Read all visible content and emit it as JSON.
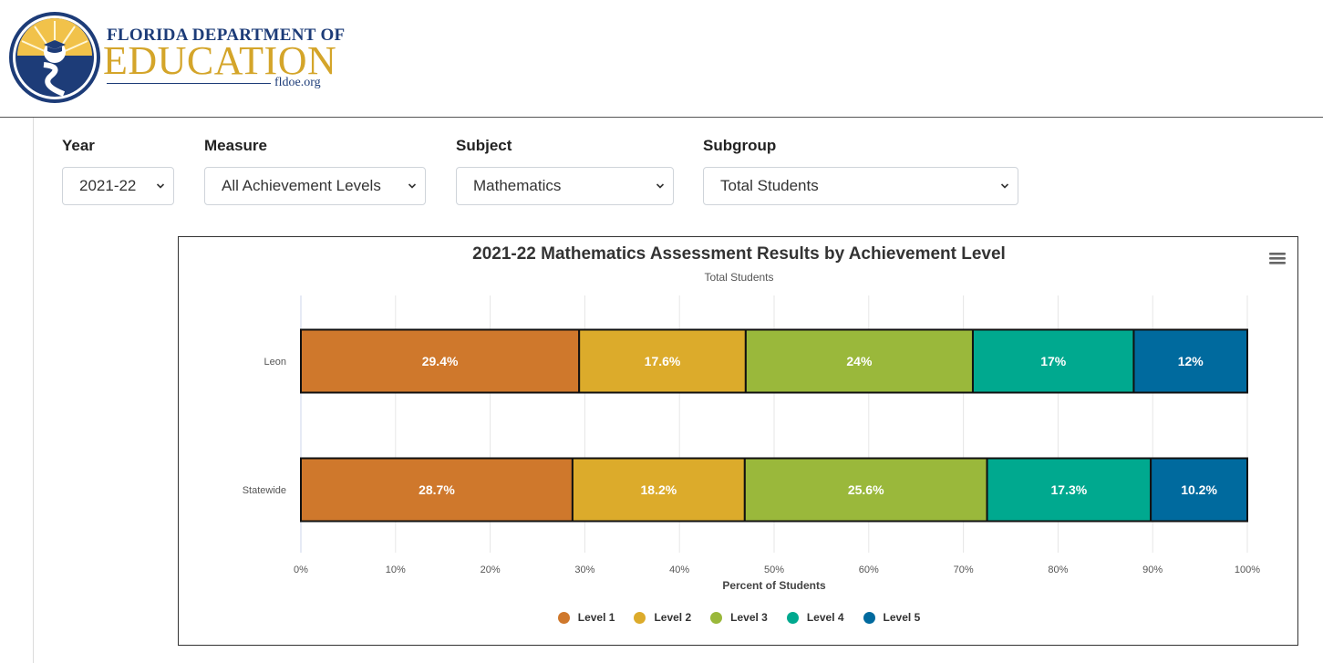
{
  "header": {
    "logo_line1": "FLORIDA DEPARTMENT OF",
    "logo_line2": "EDUCATION",
    "logo_line3": "fldoe.org"
  },
  "filters": [
    {
      "label": "Year",
      "value": "2021-22"
    },
    {
      "label": "Measure",
      "value": "All Achievement Levels"
    },
    {
      "label": "Subject",
      "value": "Mathematics"
    },
    {
      "label": "Subgroup",
      "value": "Total Students"
    }
  ],
  "colors": {
    "level1": "#cf782c",
    "level2": "#dcab2b",
    "level3": "#9ab83b",
    "level4": "#00a98f",
    "level5": "#006a9e"
  },
  "chart_data": {
    "type": "bar",
    "orientation": "horizontal",
    "stacked": true,
    "title": "2021-22 Mathematics Assessment Results by Achievement Level",
    "subtitle": "Total Students",
    "xlabel": "Percent of Students",
    "ylabel": "",
    "xlim": [
      0,
      100
    ],
    "x_ticks": [
      "0%",
      "10%",
      "20%",
      "30%",
      "40%",
      "50%",
      "60%",
      "70%",
      "80%",
      "90%",
      "100%"
    ],
    "grid": true,
    "legend_position": "bottom",
    "categories": [
      "Leon",
      "Statewide"
    ],
    "series": [
      {
        "name": "Level 1",
        "values": [
          29.4,
          28.7
        ],
        "labels": [
          "29.4%",
          "28.7%"
        ]
      },
      {
        "name": "Level 2",
        "values": [
          17.6,
          18.2
        ],
        "labels": [
          "17.6%",
          "18.2%"
        ]
      },
      {
        "name": "Level 3",
        "values": [
          24,
          25.6
        ],
        "labels": [
          "24%",
          "25.6%"
        ]
      },
      {
        "name": "Level 4",
        "values": [
          17,
          17.3
        ],
        "labels": [
          "17%",
          "17.3%"
        ]
      },
      {
        "name": "Level 5",
        "values": [
          12,
          10.2
        ],
        "labels": [
          "12%",
          "10.2%"
        ]
      }
    ]
  }
}
